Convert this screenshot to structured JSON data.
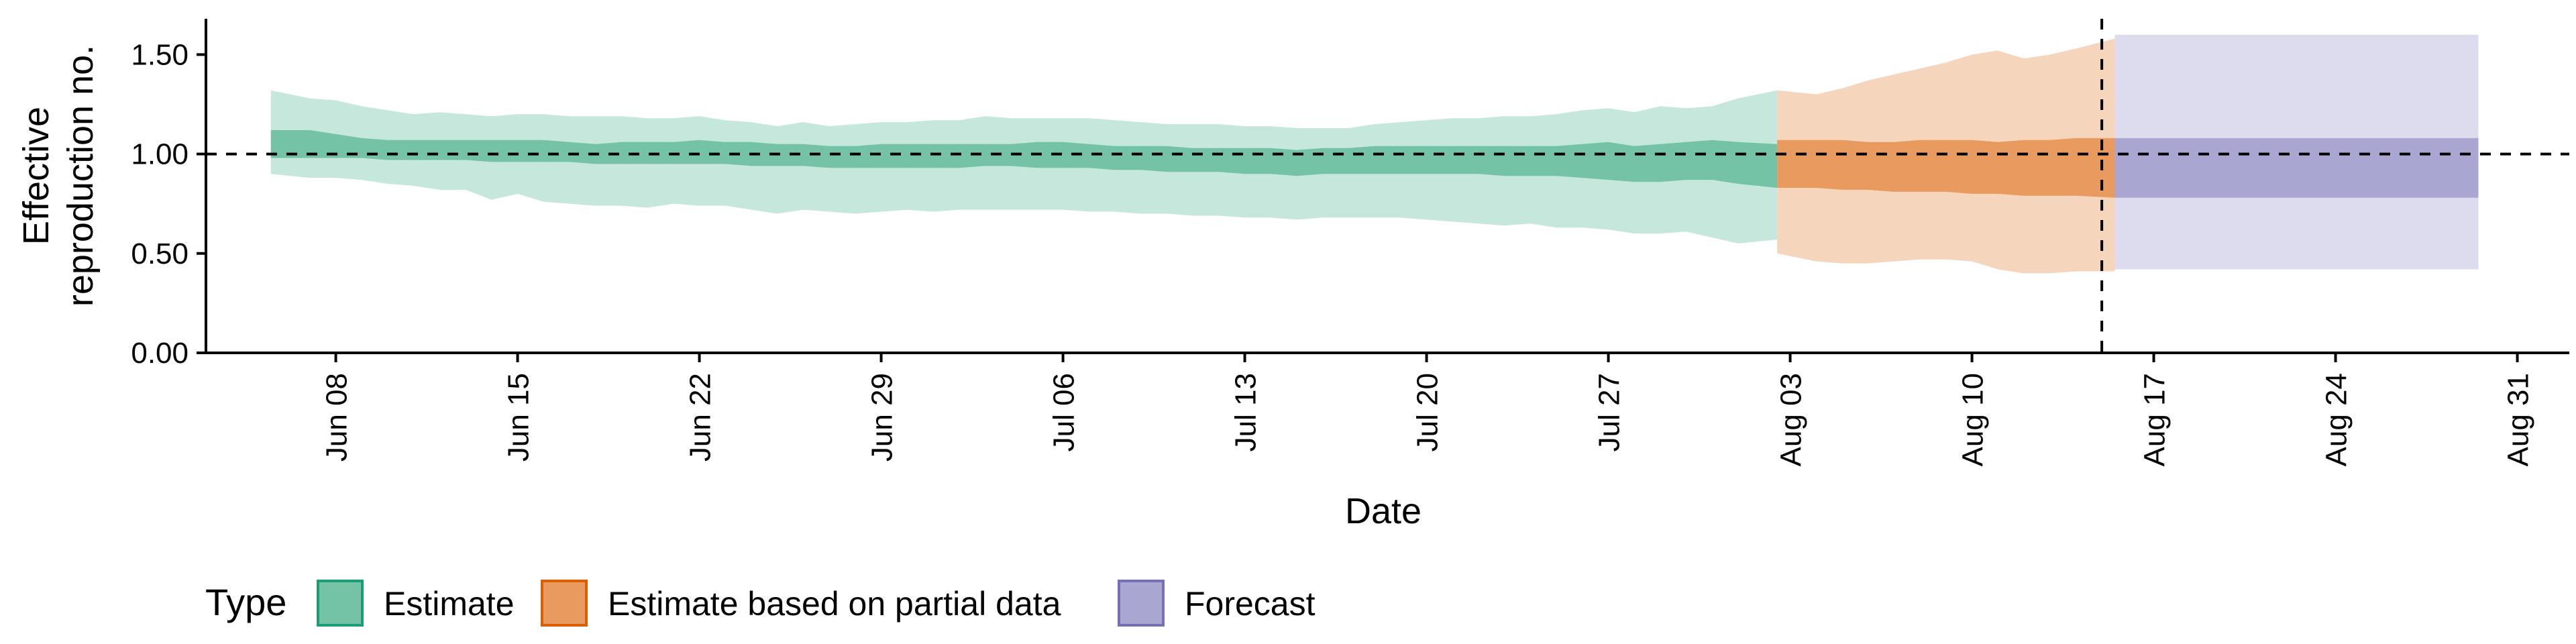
{
  "chart_data": {
    "type": "area",
    "xlabel": "Date",
    "ylabel": [
      "Effective",
      "reproduction no."
    ],
    "ylim": [
      0,
      1.68
    ],
    "xlim": [
      "2020-06-03",
      "2020-09-02"
    ],
    "x_ticks": [
      "Jun 08",
      "Jun 15",
      "Jun 22",
      "Jun 29",
      "Jul 06",
      "Jul 13",
      "Jul 20",
      "Jul 27",
      "Aug 03",
      "Aug 10",
      "Aug 17",
      "Aug 24",
      "Aug 31"
    ],
    "x_tick_dates": [
      "2020-06-08",
      "2020-06-15",
      "2020-06-22",
      "2020-06-29",
      "2020-07-06",
      "2020-07-13",
      "2020-07-20",
      "2020-07-27",
      "2020-08-03",
      "2020-08-10",
      "2020-08-17",
      "2020-08-24",
      "2020-08-31"
    ],
    "y_ticks": [
      "0.00",
      "0.50",
      "1.00",
      "1.50"
    ],
    "y_tick_values": [
      0,
      0.5,
      1.0,
      1.5
    ],
    "reference_line_y": 1.0,
    "reference_line_x": "2020-08-15",
    "legend": {
      "title": "Type",
      "position": "bottom",
      "entries": [
        {
          "label": "Estimate",
          "fill": "#74c3a6",
          "border": "#1b9e77"
        },
        {
          "label": "Estimate based on partial data",
          "fill": "#e99a5e",
          "border": "#d95f02"
        },
        {
          "label": "Forecast",
          "fill": "#a9a6d1",
          "border": "#7570b3"
        }
      ]
    },
    "series": [
      {
        "name": "Estimate",
        "color_inner": "#74c3a6",
        "color_outer": "#c5e7dc",
        "x": [
          "2020-06-06",
          "2020-06-07",
          "2020-06-08",
          "2020-06-09",
          "2020-06-10",
          "2020-06-11",
          "2020-06-12",
          "2020-06-13",
          "2020-06-14",
          "2020-06-15",
          "2020-06-16",
          "2020-06-17",
          "2020-06-18",
          "2020-06-19",
          "2020-06-20",
          "2020-06-21",
          "2020-06-22",
          "2020-06-23",
          "2020-06-24",
          "2020-06-25",
          "2020-06-26",
          "2020-06-27",
          "2020-06-28",
          "2020-06-29",
          "2020-06-30",
          "2020-07-01",
          "2020-07-02",
          "2020-07-03",
          "2020-07-04",
          "2020-07-05",
          "2020-07-06",
          "2020-07-07",
          "2020-07-08",
          "2020-07-09",
          "2020-07-10",
          "2020-07-11",
          "2020-07-12",
          "2020-07-13",
          "2020-07-14",
          "2020-07-15",
          "2020-07-16",
          "2020-07-17",
          "2020-07-18",
          "2020-07-19",
          "2020-07-20",
          "2020-07-21",
          "2020-07-22",
          "2020-07-23",
          "2020-07-24",
          "2020-07-25",
          "2020-07-26",
          "2020-07-27",
          "2020-07-28",
          "2020-07-29",
          "2020-07-30",
          "2020-07-31",
          "2020-08-01",
          "2020-08-02"
        ],
        "upper_90": [
          1.32,
          1.28,
          1.27,
          1.24,
          1.22,
          1.2,
          1.21,
          1.2,
          1.19,
          1.2,
          1.2,
          1.19,
          1.19,
          1.19,
          1.18,
          1.18,
          1.19,
          1.17,
          1.16,
          1.14,
          1.16,
          1.14,
          1.15,
          1.16,
          1.16,
          1.17,
          1.17,
          1.19,
          1.18,
          1.18,
          1.18,
          1.18,
          1.17,
          1.16,
          1.15,
          1.15,
          1.15,
          1.14,
          1.14,
          1.13,
          1.13,
          1.13,
          1.15,
          1.16,
          1.17,
          1.18,
          1.18,
          1.19,
          1.19,
          1.2,
          1.22,
          1.23,
          1.21,
          1.24,
          1.23,
          1.24,
          1.28,
          1.32
        ],
        "upper_50": [
          1.12,
          1.12,
          1.1,
          1.08,
          1.07,
          1.07,
          1.07,
          1.07,
          1.07,
          1.07,
          1.07,
          1.06,
          1.05,
          1.06,
          1.06,
          1.06,
          1.07,
          1.06,
          1.06,
          1.05,
          1.05,
          1.04,
          1.04,
          1.05,
          1.05,
          1.05,
          1.05,
          1.05,
          1.05,
          1.06,
          1.06,
          1.05,
          1.04,
          1.04,
          1.04,
          1.03,
          1.03,
          1.03,
          1.03,
          1.02,
          1.03,
          1.03,
          1.04,
          1.04,
          1.04,
          1.04,
          1.04,
          1.04,
          1.04,
          1.04,
          1.05,
          1.06,
          1.04,
          1.05,
          1.06,
          1.07,
          1.06,
          1.05
        ],
        "lower_50": [
          0.98,
          0.98,
          0.98,
          0.98,
          0.97,
          0.97,
          0.97,
          0.97,
          0.96,
          0.96,
          0.96,
          0.96,
          0.95,
          0.95,
          0.95,
          0.95,
          0.95,
          0.95,
          0.94,
          0.94,
          0.94,
          0.93,
          0.93,
          0.93,
          0.93,
          0.93,
          0.93,
          0.94,
          0.94,
          0.93,
          0.93,
          0.93,
          0.92,
          0.92,
          0.91,
          0.91,
          0.91,
          0.9,
          0.9,
          0.89,
          0.9,
          0.9,
          0.9,
          0.9,
          0.9,
          0.9,
          0.9,
          0.89,
          0.89,
          0.89,
          0.88,
          0.87,
          0.86,
          0.86,
          0.87,
          0.87,
          0.85,
          0.83
        ],
        "lower_90": [
          0.9,
          0.88,
          0.88,
          0.87,
          0.85,
          0.84,
          0.82,
          0.82,
          0.77,
          0.8,
          0.76,
          0.75,
          0.74,
          0.74,
          0.73,
          0.75,
          0.74,
          0.74,
          0.72,
          0.7,
          0.72,
          0.71,
          0.7,
          0.71,
          0.72,
          0.71,
          0.72,
          0.72,
          0.72,
          0.72,
          0.72,
          0.71,
          0.71,
          0.7,
          0.7,
          0.69,
          0.69,
          0.68,
          0.68,
          0.67,
          0.68,
          0.68,
          0.68,
          0.68,
          0.67,
          0.66,
          0.65,
          0.64,
          0.65,
          0.63,
          0.63,
          0.62,
          0.6,
          0.6,
          0.61,
          0.58,
          0.55,
          0.57
        ]
      },
      {
        "name": "Estimate based on partial data",
        "color_inner": "#e99a5e",
        "color_outer": "#f6d5bd",
        "x": [
          "2020-08-03",
          "2020-08-04",
          "2020-08-05",
          "2020-08-06",
          "2020-08-07",
          "2020-08-08",
          "2020-08-09",
          "2020-08-10",
          "2020-08-11",
          "2020-08-12",
          "2020-08-13",
          "2020-08-14",
          "2020-08-15"
        ],
        "upper_90": [
          1.32,
          1.3,
          1.33,
          1.37,
          1.4,
          1.43,
          1.46,
          1.5,
          1.52,
          1.48,
          1.5,
          1.53,
          1.58
        ],
        "upper_50": [
          1.07,
          1.07,
          1.07,
          1.06,
          1.06,
          1.07,
          1.07,
          1.07,
          1.06,
          1.07,
          1.07,
          1.08,
          1.08
        ],
        "lower_50": [
          0.83,
          0.83,
          0.82,
          0.82,
          0.81,
          0.81,
          0.81,
          0.8,
          0.8,
          0.79,
          0.79,
          0.79,
          0.78
        ],
        "lower_90": [
          0.5,
          0.46,
          0.45,
          0.45,
          0.46,
          0.47,
          0.47,
          0.46,
          0.42,
          0.4,
          0.4,
          0.41,
          0.41
        ]
      },
      {
        "name": "Forecast",
        "color_inner": "#a9a6d1",
        "color_outer": "#dddcee",
        "x": [
          "2020-08-16",
          "2020-08-17",
          "2020-08-18",
          "2020-08-19",
          "2020-08-20",
          "2020-08-21",
          "2020-08-22",
          "2020-08-23",
          "2020-08-24",
          "2020-08-25",
          "2020-08-26",
          "2020-08-27",
          "2020-08-28",
          "2020-08-29"
        ],
        "upper_90": [
          1.6,
          1.6,
          1.6,
          1.6,
          1.6,
          1.6,
          1.6,
          1.6,
          1.6,
          1.6,
          1.6,
          1.6,
          1.6,
          1.6
        ],
        "upper_50": [
          1.08,
          1.08,
          1.08,
          1.08,
          1.08,
          1.08,
          1.08,
          1.08,
          1.08,
          1.08,
          1.08,
          1.08,
          1.08,
          1.08
        ],
        "lower_50": [
          0.78,
          0.78,
          0.78,
          0.78,
          0.78,
          0.78,
          0.78,
          0.78,
          0.78,
          0.78,
          0.78,
          0.78,
          0.78,
          0.78
        ],
        "lower_90": [
          0.42,
          0.42,
          0.42,
          0.42,
          0.42,
          0.42,
          0.42,
          0.42,
          0.42,
          0.42,
          0.42,
          0.42,
          0.42,
          0.42
        ]
      }
    ]
  }
}
